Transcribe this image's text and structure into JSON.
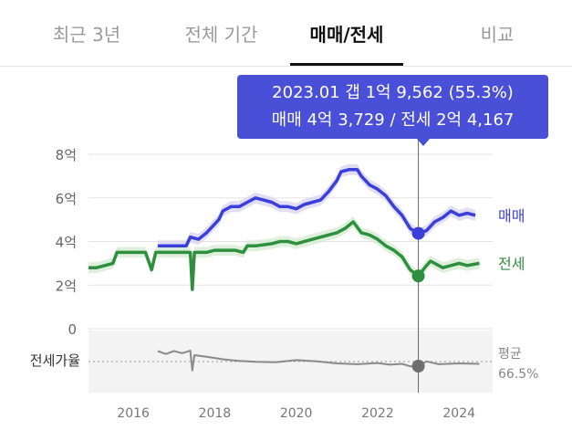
{
  "tabs": [
    {
      "label": "최근 3년",
      "active": false
    },
    {
      "label": "전체 기간",
      "active": false
    },
    {
      "label": "매매/전세",
      "active": true
    },
    {
      "label": "비교",
      "active": false
    }
  ],
  "tooltip": {
    "line1": "2023.01  갭 1억 9,562 (55.3%)",
    "line2": "매매 4억 3,729 / 전세 2억 4,167"
  },
  "colors": {
    "sale": "#3b3fd9",
    "sale_range": "#d9d4f0",
    "jeonse": "#2e8f3e",
    "jeonse_range": "#d6ecd3",
    "ratio": "#8a8a8a",
    "tooltip_bg": "#4a4fd8"
  },
  "chart_data": {
    "type": "line",
    "x_tick_labels": [
      "2016",
      "2018",
      "2020",
      "2022",
      "2024"
    ],
    "y_tick_labels": [
      "8억",
      "6억",
      "4억",
      "2억",
      "0"
    ],
    "ylim": [
      0,
      8
    ],
    "xlim": [
      2014.9,
      2024.6
    ],
    "series": [
      {
        "name": "매매",
        "x": [
          2016.6,
          2017.3,
          2017.4,
          2017.6,
          2017.8,
          2017.9,
          2018.1,
          2018.2,
          2018.4,
          2018.6,
          2018.8,
          2019.0,
          2019.2,
          2019.4,
          2019.6,
          2019.8,
          2020.0,
          2020.2,
          2020.4,
          2020.6,
          2020.8,
          2021.0,
          2021.1,
          2021.3,
          2021.5,
          2021.6,
          2021.8,
          2022.0,
          2022.2,
          2022.4,
          2022.6,
          2022.8,
          2023.0,
          2023.2,
          2023.4,
          2023.6,
          2023.8,
          2024.0,
          2024.2,
          2024.4
        ],
        "y": [
          3.8,
          3.8,
          4.2,
          4.1,
          4.4,
          4.6,
          5.0,
          5.4,
          5.6,
          5.6,
          5.8,
          6.0,
          5.9,
          5.8,
          5.6,
          5.6,
          5.5,
          5.7,
          5.8,
          5.9,
          6.3,
          6.8,
          7.2,
          7.3,
          7.3,
          7.0,
          6.6,
          6.4,
          6.1,
          5.6,
          5.2,
          4.6,
          4.37,
          4.5,
          4.9,
          5.1,
          5.4,
          5.2,
          5.3,
          5.2
        ]
      },
      {
        "name": "전세",
        "x": [
          2014.9,
          2015.1,
          2015.3,
          2015.5,
          2015.6,
          2016.0,
          2016.3,
          2016.45,
          2016.55,
          2016.8,
          2017.0,
          2017.2,
          2017.4,
          2017.45,
          2017.5,
          2017.8,
          2018.0,
          2018.5,
          2018.7,
          2018.8,
          2019.0,
          2019.4,
          2019.6,
          2019.8,
          2020.0,
          2020.4,
          2020.6,
          2021.0,
          2021.2,
          2021.4,
          2021.6,
          2021.8,
          2022.0,
          2022.2,
          2022.4,
          2022.6,
          2022.8,
          2023.0,
          2023.2,
          2023.3,
          2023.6,
          2023.8,
          2024.0,
          2024.2,
          2024.5
        ],
        "y": [
          2.8,
          2.8,
          2.9,
          3.0,
          3.5,
          3.5,
          3.5,
          2.7,
          3.5,
          3.5,
          3.5,
          3.5,
          3.5,
          1.8,
          3.5,
          3.5,
          3.6,
          3.6,
          3.5,
          3.8,
          3.8,
          3.9,
          4.0,
          4.0,
          3.9,
          4.1,
          4.2,
          4.4,
          4.6,
          4.9,
          4.4,
          4.3,
          4.1,
          3.8,
          3.6,
          3.3,
          2.7,
          2.42,
          2.9,
          3.1,
          2.8,
          2.9,
          3.0,
          2.9,
          3.0
        ]
      }
    ],
    "ratio_series": {
      "name": "전세가율",
      "x": [
        2016.6,
        2016.8,
        2017.0,
        2017.2,
        2017.4,
        2017.45,
        2017.5,
        2017.8,
        2018.2,
        2018.6,
        2019.0,
        2019.5,
        2020.0,
        2020.5,
        2021.0,
        2021.5,
        2022.0,
        2022.3,
        2022.6,
        2022.8,
        2023.0,
        2023.2,
        2023.5,
        2024.0,
        2024.5
      ],
      "y": [
        92,
        85,
        92,
        87,
        93,
        45,
        82,
        78,
        72,
        68,
        66,
        65,
        70,
        67,
        62,
        60,
        63,
        59,
        61,
        55,
        55.3,
        67,
        60,
        62,
        61
      ]
    },
    "ratio_label": "전세가율",
    "average_label": "평균",
    "average_value": "66.5%",
    "average_ratio": 66.5,
    "highlight": {
      "x": 2023.0,
      "sale": 4.3729,
      "jeonse": 2.4167,
      "ratio": 55.3
    }
  }
}
